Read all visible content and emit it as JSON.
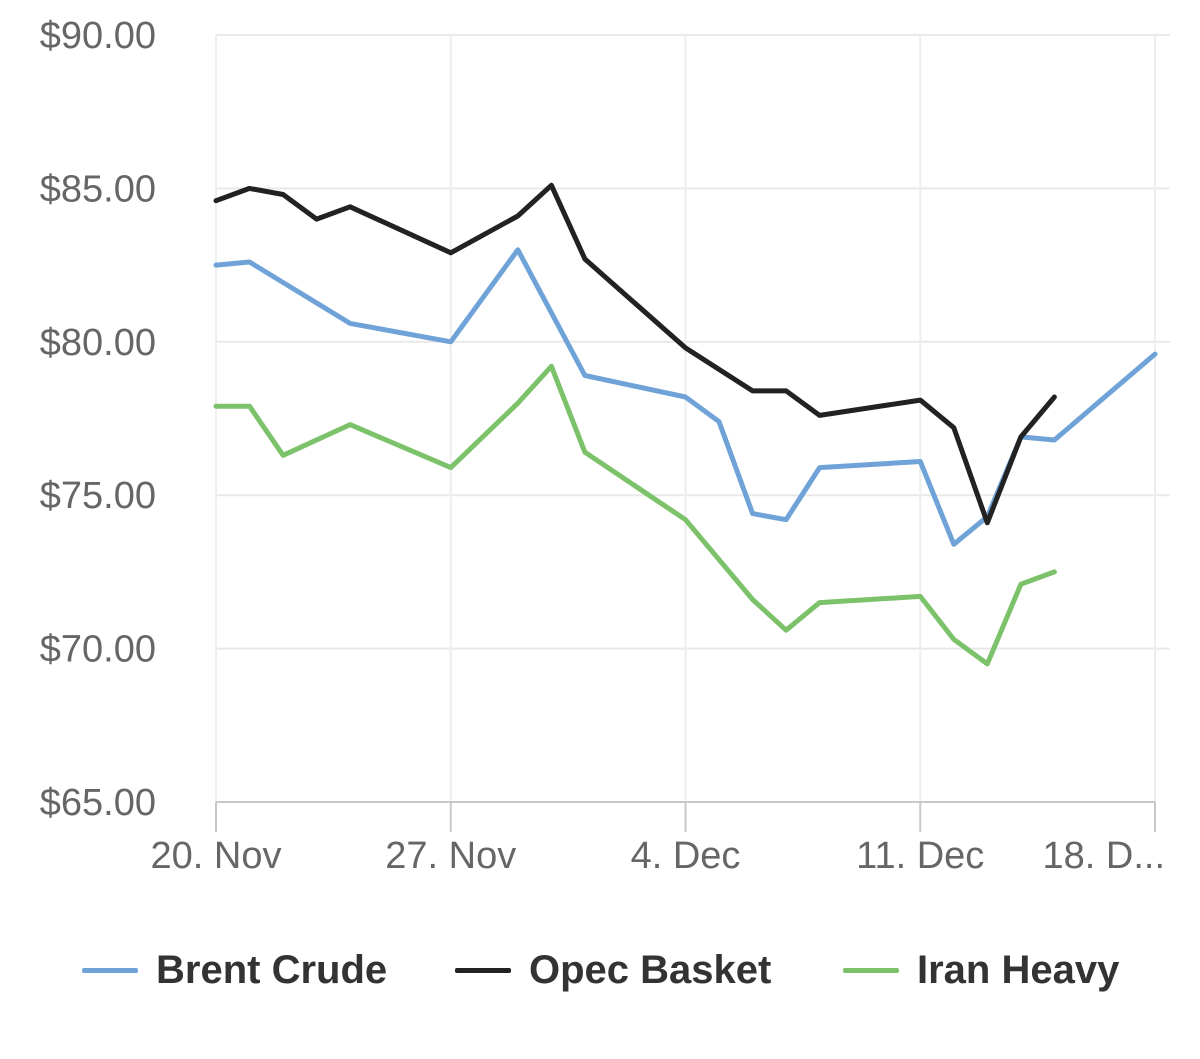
{
  "chart_data": {
    "type": "line",
    "title": "",
    "xlabel": "",
    "ylabel": "",
    "ylim": [
      65,
      90
    ],
    "y_ticks": [
      "$65.00",
      "$70.00",
      "$75.00",
      "$80.00",
      "$85.00",
      "$90.00"
    ],
    "y_tick_values": [
      65,
      70,
      75,
      80,
      85,
      90
    ],
    "x_ticks": [
      "20. Nov",
      "27. Nov",
      "4. Dec",
      "11. Dec",
      "18. D..."
    ],
    "x_tick_dates": [
      "2017-11-20",
      "2017-11-27",
      "2017-12-04",
      "2017-12-11",
      "2017-12-18"
    ],
    "xlim": [
      "2017-11-20",
      "2017-12-18"
    ],
    "grid": true,
    "legend_position": "bottom",
    "series": [
      {
        "name": "Brent Crude",
        "color": "#6fa3d8",
        "points": [
          [
            "2017-11-20",
            82.5
          ],
          [
            "2017-11-21",
            82.6
          ],
          [
            "2017-11-24",
            80.6
          ],
          [
            "2017-11-27",
            80.0
          ],
          [
            "2017-11-29",
            83.0
          ],
          [
            "2017-12-01",
            78.9
          ],
          [
            "2017-12-04",
            78.2
          ],
          [
            "2017-12-05",
            77.4
          ],
          [
            "2017-12-06",
            74.4
          ],
          [
            "2017-12-07",
            74.2
          ],
          [
            "2017-12-08",
            75.9
          ],
          [
            "2017-12-11",
            76.1
          ],
          [
            "2017-12-12",
            73.4
          ],
          [
            "2017-12-13",
            74.3
          ],
          [
            "2017-12-14",
            76.9
          ],
          [
            "2017-12-15",
            76.8
          ],
          [
            "2017-12-18",
            79.6
          ]
        ]
      },
      {
        "name": "Opec Basket",
        "color": "#222222",
        "points": [
          [
            "2017-11-20",
            84.6
          ],
          [
            "2017-11-21",
            85.0
          ],
          [
            "2017-11-22",
            84.8
          ],
          [
            "2017-11-23",
            84.0
          ],
          [
            "2017-11-24",
            84.4
          ],
          [
            "2017-11-27",
            82.9
          ],
          [
            "2017-11-29",
            84.1
          ],
          [
            "2017-11-30",
            85.1
          ],
          [
            "2017-12-01",
            82.7
          ],
          [
            "2017-12-04",
            79.8
          ],
          [
            "2017-12-06",
            78.4
          ],
          [
            "2017-12-07",
            78.4
          ],
          [
            "2017-12-08",
            77.6
          ],
          [
            "2017-12-11",
            78.1
          ],
          [
            "2017-12-12",
            77.2
          ],
          [
            "2017-12-13",
            74.1
          ],
          [
            "2017-12-14",
            76.9
          ],
          [
            "2017-12-15",
            78.2
          ]
        ]
      },
      {
        "name": "Iran Heavy",
        "color": "#7cc26a",
        "points": [
          [
            "2017-11-20",
            77.9
          ],
          [
            "2017-11-21",
            77.9
          ],
          [
            "2017-11-22",
            76.3
          ],
          [
            "2017-11-24",
            77.3
          ],
          [
            "2017-11-27",
            75.9
          ],
          [
            "2017-11-29",
            78.0
          ],
          [
            "2017-11-30",
            79.2
          ],
          [
            "2017-12-01",
            76.4
          ],
          [
            "2017-12-04",
            74.2
          ],
          [
            "2017-12-06",
            71.6
          ],
          [
            "2017-12-07",
            70.6
          ],
          [
            "2017-12-08",
            71.5
          ],
          [
            "2017-12-11",
            71.7
          ],
          [
            "2017-12-12",
            70.3
          ],
          [
            "2017-12-13",
            69.5
          ],
          [
            "2017-12-14",
            72.1
          ],
          [
            "2017-12-15",
            72.5
          ]
        ]
      }
    ]
  }
}
